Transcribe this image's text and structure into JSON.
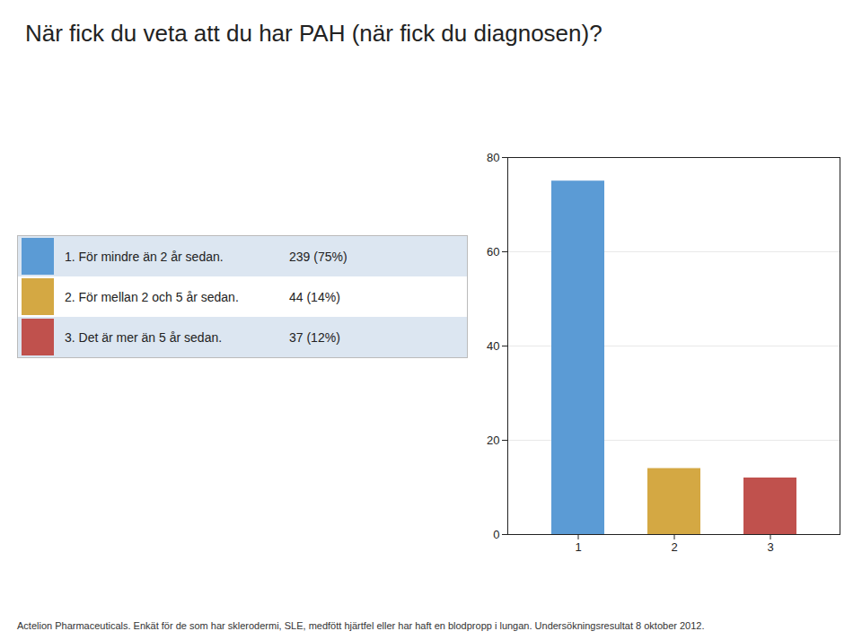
{
  "chart_data": {
    "type": "bar",
    "title": "När fick du veta att du har PAH (när fick du diagnosen)?",
    "categories": [
      "1",
      "2",
      "3"
    ],
    "values": [
      75,
      14,
      12
    ],
    "colors": [
      "#5b9bd5",
      "#d4a843",
      "#c0514d"
    ],
    "ylim": [
      0,
      80
    ],
    "yticks": [
      0,
      20,
      40,
      60,
      80
    ],
    "grid": true,
    "annotations": [
      {
        "text": "1. För mindre än 2 år sedan.",
        "value_label": "239 (75%)"
      },
      {
        "text": "2. För mellan 2 och 5 år sedan.",
        "value_label": "44 (14%)"
      },
      {
        "text": "3. Det är mer än 5 år sedan.",
        "value_label": "37 (12%)"
      }
    ],
    "caption": "Actelion Pharmaceuticals. Enkät för de som har sklerodermi, SLE, medfött hjärtfel eller har haft en blodpropp i lungan. Undersökningsresultat 8 oktober 2012."
  }
}
